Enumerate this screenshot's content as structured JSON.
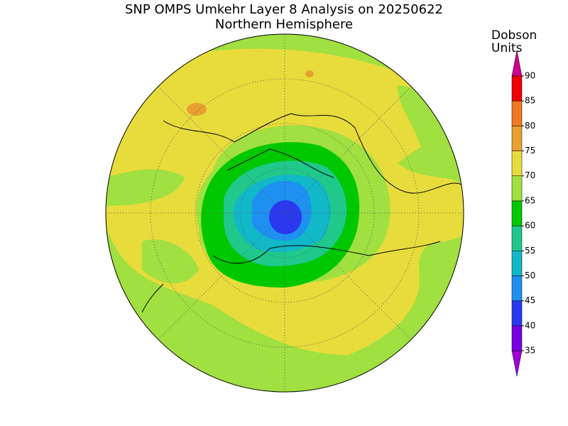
{
  "title": "SNP OMPS Umkehr Layer 8 Analysis on 20250622",
  "subtitle": "Northern Hemisphere",
  "colorbar": {
    "label_lines": [
      "Dobson",
      "Units"
    ],
    "ticks": [
      35,
      40,
      45,
      50,
      55,
      60,
      65,
      70,
      75,
      80,
      85,
      90
    ],
    "colors": [
      "#a000d8",
      "#7800e0",
      "#2a38f0",
      "#1e90f0",
      "#10b8c8",
      "#20c88c",
      "#00c800",
      "#a0e040",
      "#e8dc3c",
      "#e8a030",
      "#f07820",
      "#f00000",
      "#d0008c"
    ]
  }
}
